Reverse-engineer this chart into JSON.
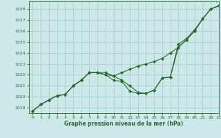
{
  "title": "Graphe pression niveau de la mer (hPa)",
  "background_color": "#cce8e8",
  "grid_color": "#a8cccc",
  "line_color": "#2d6a2d",
  "xlim": [
    -0.5,
    23
  ],
  "ylim": [
    1018.5,
    1028.7
  ],
  "xticks": [
    0,
    1,
    2,
    3,
    4,
    5,
    6,
    7,
    8,
    9,
    10,
    11,
    12,
    13,
    14,
    15,
    16,
    17,
    18,
    19,
    20,
    21,
    22,
    23
  ],
  "yticks": [
    1019,
    1020,
    1021,
    1022,
    1023,
    1024,
    1025,
    1026,
    1027,
    1028
  ],
  "line1_x": [
    0,
    1,
    2,
    3,
    4,
    5,
    6,
    7,
    8,
    9,
    10,
    11,
    12,
    13,
    14,
    15,
    16,
    17,
    18,
    19,
    20,
    21,
    22,
    23
  ],
  "line1_y": [
    1018.7,
    1019.3,
    1019.7,
    1020.1,
    1020.2,
    1021.0,
    1021.5,
    1022.2,
    1022.2,
    1022.2,
    1021.9,
    1022.2,
    1022.5,
    1022.8,
    1023.0,
    1023.2,
    1023.5,
    1024.0,
    1024.5,
    1025.2,
    1026.0,
    1027.1,
    1028.0,
    1028.3
  ],
  "line2_x": [
    0,
    1,
    2,
    3,
    4,
    5,
    6,
    7,
    8,
    9,
    10,
    11,
    12,
    13,
    14,
    15,
    16,
    17,
    18,
    19,
    20,
    21,
    22,
    23
  ],
  "line2_y": [
    1018.7,
    1019.3,
    1019.7,
    1020.1,
    1020.2,
    1021.0,
    1021.5,
    1022.2,
    1022.2,
    1022.0,
    1021.9,
    1021.5,
    1021.0,
    1020.4,
    1020.3,
    1020.6,
    1021.7,
    1021.8,
    1024.5,
    1025.2,
    1026.0,
    1027.1,
    1028.0,
    1028.3
  ],
  "line3_x": [
    0,
    1,
    2,
    3,
    4,
    5,
    6,
    7,
    8,
    9,
    10,
    11,
    12,
    13,
    14,
    15,
    16,
    17,
    18,
    19,
    20,
    21,
    22,
    23
  ],
  "line3_y": [
    1018.7,
    1019.3,
    1019.7,
    1020.1,
    1020.2,
    1021.0,
    1021.5,
    1022.2,
    1022.2,
    1022.0,
    1021.5,
    1021.4,
    1020.5,
    1020.3,
    1020.3,
    1020.6,
    1021.7,
    1021.8,
    1024.8,
    1025.3,
    1026.1,
    1027.1,
    1028.0,
    1028.3
  ]
}
